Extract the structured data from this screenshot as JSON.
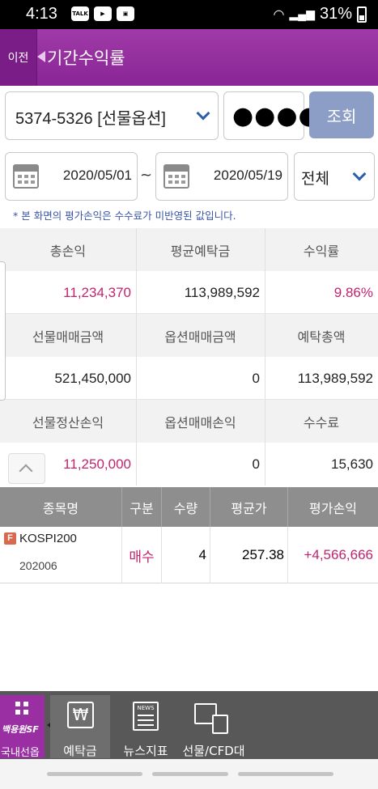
{
  "status_bar": {
    "time": "4:13",
    "battery": "31%",
    "app_icons": [
      "TALK",
      "▶",
      "▣"
    ]
  },
  "header": {
    "back_label": "이전",
    "title": "기간수익률"
  },
  "filters": {
    "account": "5374-5326 [선물옵션]",
    "password_mask": "●●●●",
    "search_label": "조회",
    "date_from": "2020/05/01",
    "date_separator": "~",
    "date_to": "2020/05/19",
    "type": "전체"
  },
  "notice": "* 본 화면의 평가손익은 수수료가 미반영된 값입니다.",
  "summary": {
    "rows": [
      {
        "labels": [
          "총손익",
          "평균예탁금",
          "수익률"
        ],
        "values": [
          "11,234,370",
          "113,989,592",
          "9.86%"
        ]
      },
      {
        "labels": [
          "선물매매금액",
          "옵션매매금액",
          "예탁총액"
        ],
        "values": [
          "521,450,000",
          "0",
          "113,989,592"
        ]
      },
      {
        "labels": [
          "선물정산손익",
          "옵션매매손익",
          "수수료"
        ],
        "values": [
          "11,250,000",
          "0",
          "15,630"
        ]
      }
    ]
  },
  "holdings": {
    "columns": [
      "종목명",
      "구분",
      "수량",
      "평균가",
      "평가손익"
    ],
    "rows": [
      {
        "badge": "F",
        "name": "KOSPI200",
        "code": "202006",
        "side": "매수",
        "qty": "4",
        "avg_price": "257.38",
        "pnl": "+4,566,666"
      }
    ]
  },
  "bottom_nav": {
    "home_logo": "백용원SF",
    "home_label": "국내선옵",
    "deposit_label": "예탁금",
    "deposit_icon_glyph": "₩",
    "news_label": "뉴스지표",
    "news_icon_text": "NEWS",
    "cfd_label": "선물/CFD대용"
  },
  "colors": {
    "header": "#8a2596",
    "accent_pink": "#c0246e",
    "search_button": "#8c9dc6",
    "table_header": "#8e8e8e"
  }
}
